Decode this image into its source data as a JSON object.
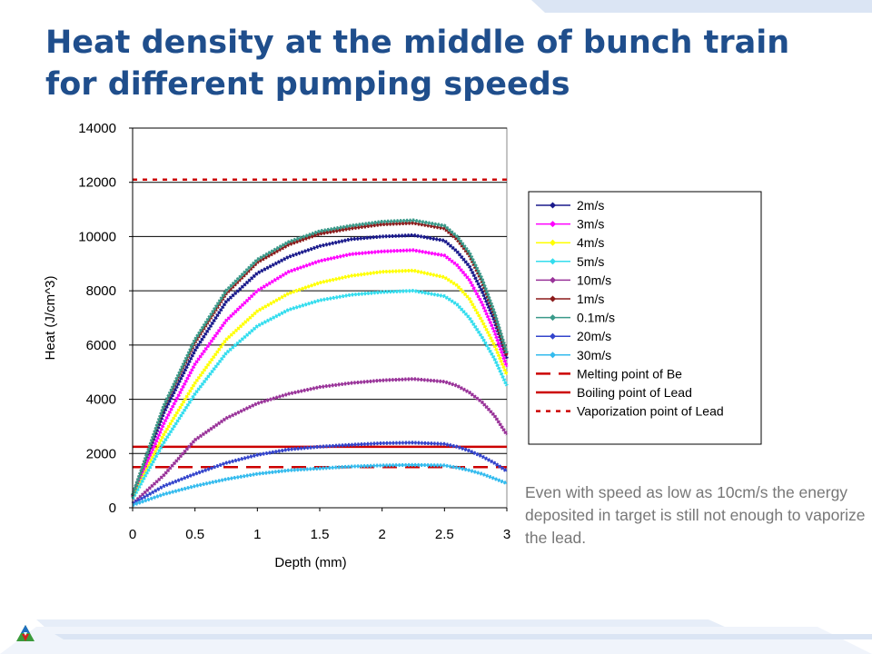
{
  "slide": {
    "title_line1": "Heat density at the middle of bunch train",
    "title_line2": "for different pumping speeds",
    "note": "Even with speed as low as 10cm/s the energy deposited in target is still not enough to vaporize the lead.",
    "colors": {
      "title": "#1f4e8c",
      "note": "#777777",
      "accent": "#dbe5f4"
    },
    "logo": "argonne-triangle-logo"
  },
  "chart_data": {
    "type": "line",
    "xlabel": "Depth (mm)",
    "ylabel": "Heat (J/cm^3)",
    "xlim": [
      0,
      3
    ],
    "ylim": [
      0,
      14000
    ],
    "x_ticks": [
      "0",
      "0.5",
      "1",
      "1.5",
      "2",
      "2.5",
      "3"
    ],
    "y_ticks": [
      "0",
      "2000",
      "4000",
      "6000",
      "8000",
      "10000",
      "12000",
      "14000"
    ],
    "grid": "horizontal",
    "plot_background": "#ffffff",
    "legend_position": "right",
    "x": [
      0,
      0.25,
      0.5,
      0.75,
      1,
      1.25,
      1.5,
      1.75,
      2,
      2.25,
      2.5,
      2.6,
      2.7,
      2.8,
      2.9,
      3
    ],
    "series": [
      {
        "name": "2m/s",
        "color": "#1a1a8c",
        "marker": "diamond",
        "values": [
          400,
          3500,
          5800,
          7600,
          8650,
          9250,
          9650,
          9900,
          10000,
          10050,
          9850,
          9450,
          8900,
          8000,
          6900,
          5500
        ]
      },
      {
        "name": "3m/s",
        "color": "#ff00ff",
        "marker": "square",
        "values": [
          380,
          3100,
          5300,
          6900,
          8000,
          8700,
          9100,
          9350,
          9450,
          9500,
          9300,
          8950,
          8400,
          7550,
          6500,
          5200
        ]
      },
      {
        "name": "4m/s",
        "color": "#ffff00",
        "marker": "triangle",
        "values": [
          350,
          2700,
          4600,
          6200,
          7250,
          7900,
          8300,
          8550,
          8700,
          8750,
          8500,
          8200,
          7700,
          6900,
          6000,
          4900
        ]
      },
      {
        "name": "5m/s",
        "color": "#33ddee",
        "marker": "x",
        "values": [
          330,
          2400,
          4200,
          5700,
          6700,
          7300,
          7650,
          7850,
          7950,
          8000,
          7800,
          7500,
          7000,
          6300,
          5500,
          4500
        ]
      },
      {
        "name": "10m/s",
        "color": "#993399",
        "marker": "asterisk",
        "values": [
          150,
          1200,
          2500,
          3300,
          3850,
          4200,
          4450,
          4600,
          4700,
          4750,
          4650,
          4500,
          4250,
          3900,
          3400,
          2700
        ]
      },
      {
        "name": "1m/s",
        "color": "#8b1a1a",
        "marker": "dot",
        "values": [
          450,
          3700,
          6100,
          7900,
          9050,
          9700,
          10100,
          10300,
          10450,
          10500,
          10300,
          9900,
          9300,
          8350,
          7100,
          5600
        ]
      },
      {
        "name": "0.1m/s",
        "color": "#3a9a8a",
        "marker": "plus",
        "values": [
          460,
          3750,
          6200,
          8000,
          9150,
          9800,
          10200,
          10400,
          10550,
          10600,
          10400,
          10000,
          9400,
          8450,
          7200,
          5700
        ]
      },
      {
        "name": "20m/s",
        "color": "#3344cc",
        "marker": "dash",
        "values": [
          150,
          800,
          1250,
          1650,
          1950,
          2150,
          2250,
          2320,
          2380,
          2400,
          2350,
          2250,
          2100,
          1900,
          1650,
          1350
        ]
      },
      {
        "name": "30m/s",
        "color": "#33bbee",
        "marker": "dash",
        "values": [
          100,
          500,
          800,
          1050,
          1250,
          1380,
          1450,
          1520,
          1560,
          1580,
          1560,
          1480,
          1380,
          1250,
          1080,
          900
        ]
      }
    ],
    "reference_lines": [
      {
        "name": "Melting point of Be",
        "color": "#cc0000",
        "style": "long-dash",
        "y": 1500
      },
      {
        "name": "Boiling point of Lead",
        "color": "#cc0000",
        "style": "solid",
        "y": 2250
      },
      {
        "name": "Vaporization point of Lead",
        "color": "#cc0000",
        "style": "short-dash",
        "y": 12100
      }
    ]
  }
}
